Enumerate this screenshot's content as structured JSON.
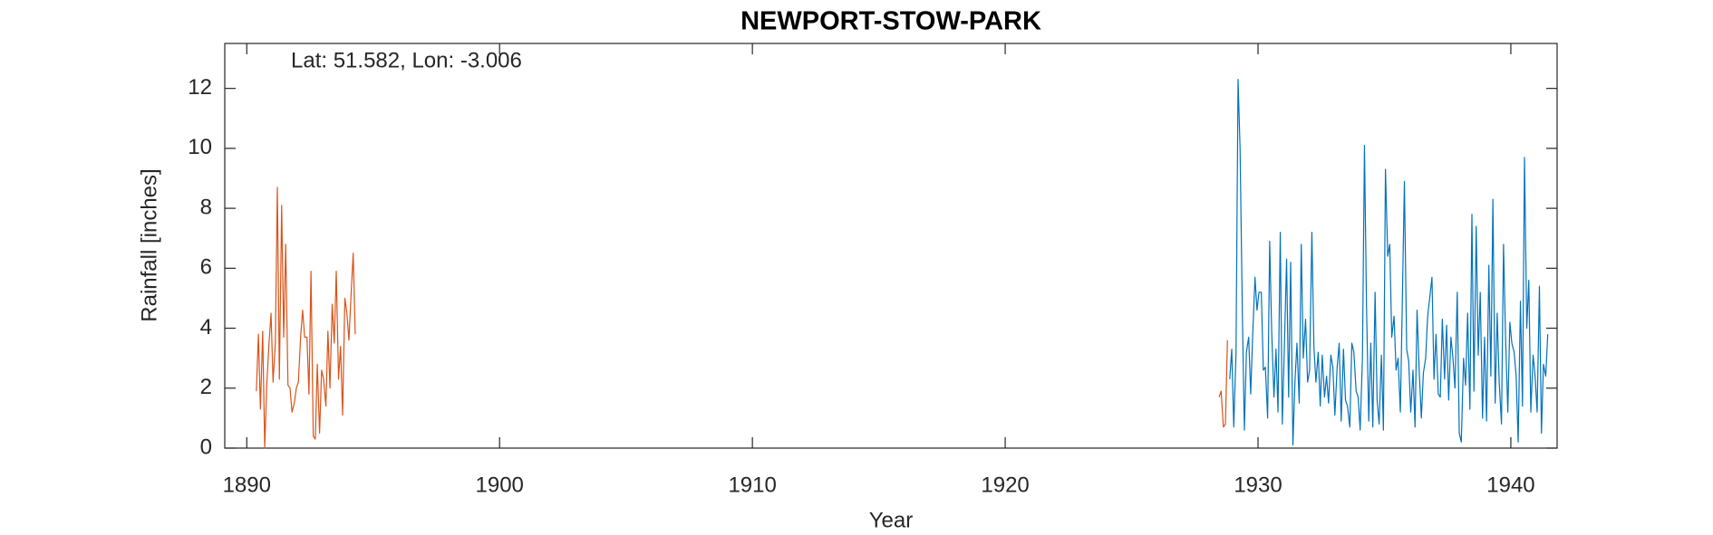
{
  "chart_data": {
    "type": "line",
    "title": "NEWPORT-STOW-PARK",
    "annotation": "Lat: 51.582, Lon: -3.006",
    "xlabel": "Year",
    "ylabel": "Rainfall [inches]",
    "xlim": [
      1889.13,
      1941.83
    ],
    "xticks": [
      1890,
      1900,
      1910,
      1920,
      1930,
      1940
    ],
    "ylim": [
      0,
      13.5
    ],
    "yticks": [
      0,
      2,
      4,
      6,
      8,
      10,
      12
    ],
    "grid": false,
    "series": [
      {
        "color": "#d95319",
        "x": [
          1890.38,
          1890.46,
          1890.54,
          1890.63,
          1890.71,
          1890.79,
          1890.88,
          1890.96,
          1891.04,
          1891.13,
          1891.21,
          1891.29,
          1891.38,
          1891.46,
          1891.54,
          1891.63,
          1891.71,
          1891.79,
          1891.88,
          1891.96,
          1892.04,
          1892.13,
          1892.21,
          1892.29,
          1892.38,
          1892.46,
          1892.54,
          1892.63,
          1892.71,
          1892.79,
          1892.88,
          1892.96,
          1893.04,
          1893.13,
          1893.21,
          1893.29,
          1893.38,
          1893.46,
          1893.54,
          1893.63,
          1893.71,
          1893.79,
          1893.88,
          1893.96,
          1894.04,
          1894.13,
          1894.21,
          1894.29,
          null,
          1928.46,
          1928.54,
          1928.63,
          1928.71,
          1928.79
        ],
        "values": [
          1.9,
          3.8,
          1.3,
          3.9,
          0,
          2.1,
          3.5,
          4.5,
          2.2,
          3.5,
          8.7,
          2.3,
          8.1,
          3.7,
          6.8,
          2.1,
          2.0,
          1.2,
          1.5,
          2.0,
          2.2,
          3.7,
          4.6,
          3.7,
          3.7,
          1.8,
          5.9,
          0.4,
          0.3,
          2.8,
          0.5,
          2.6,
          2.3,
          1.4,
          3.9,
          2.0,
          4.8,
          3.5,
          5.9,
          2.3,
          3.4,
          1.1,
          5.0,
          4.5,
          3.6,
          5.2,
          6.5,
          3.8,
          null,
          1.7,
          1.9,
          0.7,
          0.8,
          3.6
        ]
      },
      {
        "color": "#0072bd",
        "x": [
          1928.88,
          1928.96,
          1929.04,
          1929.13,
          1929.21,
          1929.29,
          1929.38,
          1929.46,
          1929.54,
          1929.63,
          1929.71,
          1929.79,
          1929.88,
          1929.96,
          1930.04,
          1930.13,
          1930.21,
          1930.29,
          1930.38,
          1930.46,
          1930.54,
          1930.63,
          1930.71,
          1930.79,
          1930.88,
          1930.96,
          1931.04,
          1931.13,
          1931.21,
          1931.29,
          1931.38,
          1931.46,
          1931.54,
          1931.63,
          1931.71,
          1931.79,
          1931.88,
          1931.96,
          1932.04,
          1932.13,
          1932.21,
          1932.29,
          1932.38,
          1932.46,
          1932.54,
          1932.63,
          1932.71,
          1932.79,
          1932.88,
          1932.96,
          1933.04,
          1933.13,
          1933.21,
          1933.29,
          1933.38,
          1933.46,
          1933.54,
          1933.63,
          1933.71,
          1933.79,
          1933.88,
          1933.96,
          1934.04,
          1934.13,
          1934.21,
          1934.29,
          1934.38,
          1934.46,
          1934.54,
          1934.63,
          1934.71,
          1934.79,
          1934.88,
          1934.96,
          1935.04,
          1935.13,
          1935.21,
          1935.29,
          1935.38,
          1935.46,
          1935.54,
          1935.63,
          1935.71,
          1935.79,
          1935.88,
          1935.96,
          1936.04,
          1936.13,
          1936.21,
          1936.29,
          1936.38,
          1936.46,
          1936.54,
          1936.63,
          1936.71,
          1936.79,
          1936.88,
          1936.96,
          1937.04,
          1937.13,
          1937.21,
          1937.29,
          1937.38,
          1937.46,
          1937.54,
          1937.63,
          1937.71,
          1937.79,
          1937.88,
          1937.96,
          1938.04,
          1938.13,
          1938.21,
          1938.29,
          1938.38,
          1938.46,
          1938.54,
          1938.63,
          1938.71,
          1938.79,
          1938.88,
          1938.96,
          1939.04,
          1939.13,
          1939.21,
          1939.29,
          1939.38,
          1939.46,
          1939.54,
          1939.63,
          1939.71,
          1939.79,
          1939.88,
          1939.96,
          1940.04,
          1940.13,
          1940.21,
          1940.29,
          1940.38,
          1940.46,
          1940.54,
          1940.63,
          1940.71,
          1940.79,
          1940.88,
          1940.96,
          1941.04,
          1941.13,
          1941.21,
          1941.29,
          1941.38,
          1941.46
        ],
        "values": [
          2.3,
          3.3,
          0.7,
          3.2,
          12.3,
          10.0,
          4.5,
          0.6,
          3.2,
          3.7,
          1.8,
          3.8,
          5.7,
          4.6,
          5.2,
          5.2,
          2.6,
          2.7,
          1.0,
          6.9,
          3.9,
          1.7,
          3.3,
          1.2,
          7.2,
          0.8,
          3.3,
          6.3,
          1.7,
          6.2,
          0.1,
          2.2,
          3.5,
          1.5,
          6.8,
          3.0,
          4.3,
          2.2,
          2.6,
          7.2,
          3.4,
          2.2,
          3.2,
          1.4,
          3.1,
          1.7,
          2.4,
          1.5,
          3.1,
          2.7,
          1.1,
          2.7,
          3.5,
          0.9,
          3.3,
          1.6,
          1.4,
          0.7,
          3.5,
          3.2,
          1.9,
          1.7,
          0.6,
          3.0,
          10.1,
          4.8,
          0.9,
          3.5,
          0.7,
          5.2,
          1.6,
          0.8,
          3.1,
          0.6,
          9.3,
          6.4,
          6.8,
          3.7,
          4.4,
          2.6,
          3.0,
          1.2,
          5.0,
          8.9,
          3.3,
          2.9,
          1.2,
          2.6,
          0.7,
          4.6,
          2.5,
          1.0,
          2.5,
          3.0,
          4.4,
          5.0,
          5.7,
          2.3,
          3.8,
          1.8,
          1.7,
          4.3,
          2.3,
          4.1,
          1.6,
          3.7,
          3.0,
          2.0,
          5.2,
          0.5,
          0.2,
          3.0,
          2.1,
          4.5,
          1.3,
          7.8,
          1.9,
          7.4,
          3.1,
          5.2,
          1.0,
          3.7,
          0.9,
          6.1,
          2.4,
          8.3,
          1.5,
          4.5,
          2.2,
          0.8,
          6.8,
          3.7,
          1.2,
          4.2,
          3.5,
          3.2,
          2.4,
          0.2,
          4.9,
          1.4,
          9.7,
          4.0,
          5.6,
          1.2,
          3.1,
          2.4,
          1.2,
          5.4,
          0.5,
          2.8,
          2.4,
          3.8
        ]
      }
    ]
  }
}
